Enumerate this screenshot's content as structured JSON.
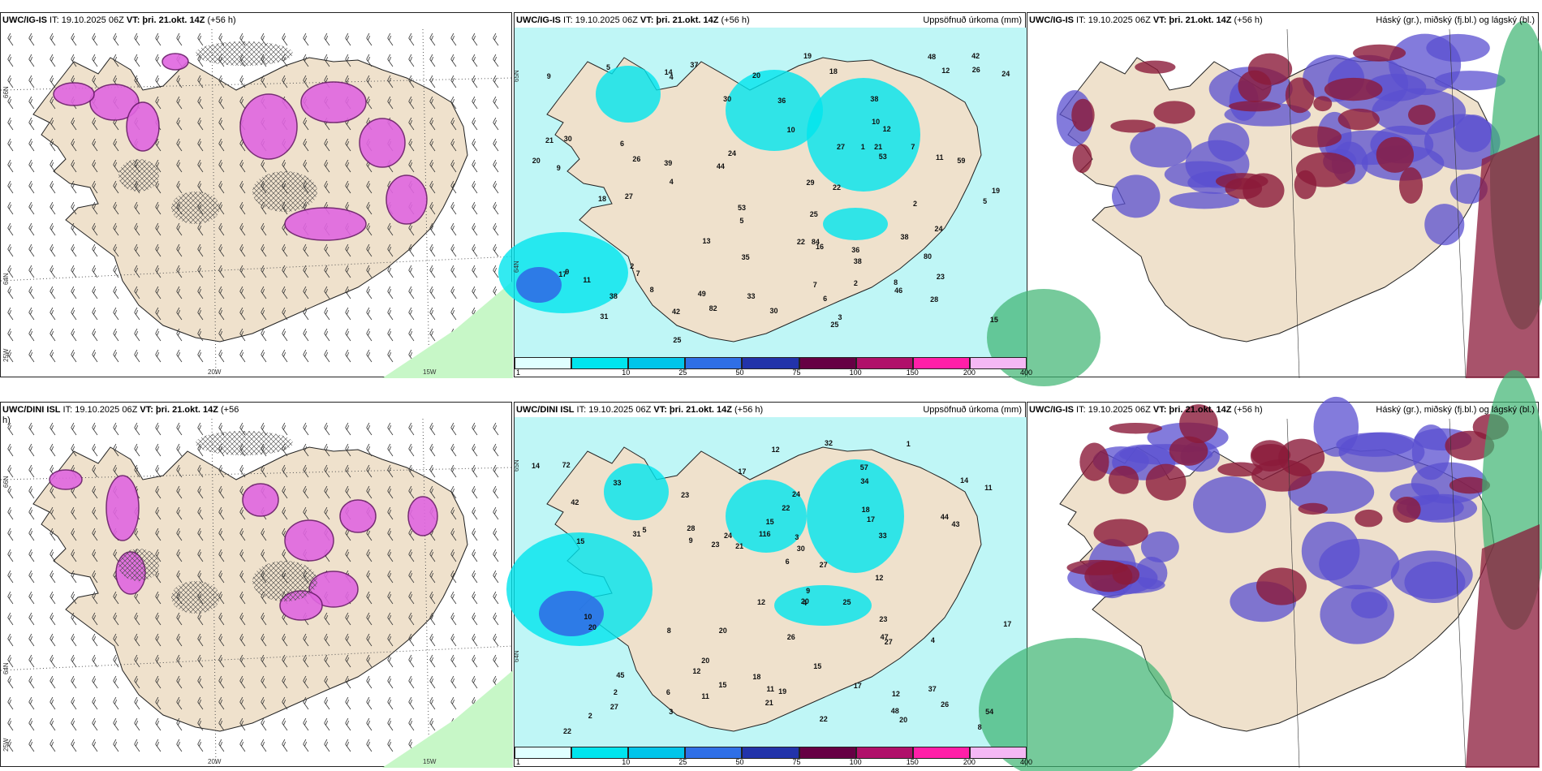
{
  "panels": [
    {
      "id": "p1",
      "model": "UWC/IG-IS",
      "run": "IT: 19.10.2025 06Z",
      "vt_key": "VT:",
      "vt_val": "þri. 21.okt. 14Z",
      "lead": "(+56 h)",
      "right_title": "",
      "lat_labels": [
        "66N",
        "64N"
      ],
      "lon_labels": [
        "25W",
        "20W",
        "15W"
      ],
      "kind": "wind"
    },
    {
      "id": "p2",
      "model": "UWC/IG-IS",
      "run": "IT: 19.10.2025 06Z",
      "vt_key": "VT:",
      "vt_val": "þri. 21.okt. 14Z",
      "lead": "(+56 h)",
      "right_title": "Uppsöfnuð úrkoma (mm)",
      "lat_labels": [
        "65N",
        "64N"
      ],
      "kind": "precip",
      "values": [
        "3",
        "4",
        "7",
        "6",
        "7",
        "6",
        "5",
        "4",
        "5",
        "8",
        "11",
        "21",
        "53",
        "84",
        "53",
        "48",
        "9",
        "12",
        "38",
        "11",
        "8",
        "16",
        "42",
        "46",
        "22",
        "12",
        "27",
        "26",
        "30",
        "30",
        "38",
        "42",
        "38",
        "49",
        "37",
        "33",
        "19",
        "30",
        "19",
        "36",
        "20",
        "29",
        "24",
        "23",
        "18",
        "24",
        "22",
        "35",
        "25",
        "26",
        "13",
        "10",
        "39",
        "10",
        "9",
        "15",
        "28",
        "24",
        "25",
        "17",
        "20",
        "25",
        "21",
        "18",
        "14",
        "31",
        "5",
        "7",
        "2",
        "44",
        "59",
        "27",
        "38",
        "36",
        "82",
        "80",
        "2",
        "2",
        "1",
        "9"
      ],
      "colorbar": [
        "1",
        "10",
        "25",
        "50",
        "75",
        "100",
        "150",
        "200",
        "400"
      ]
    },
    {
      "id": "p3",
      "model": "UWC/IG-IS",
      "run": "IT: 19.10.2025 06Z",
      "vt_key": "VT:",
      "vt_val": "þri. 21.okt. 14Z",
      "lead": "(+56 h)",
      "right_title": "Háský (gr.), miðský (fj.bl.) og lágský (bl.)",
      "kind": "cloud"
    },
    {
      "id": "p4",
      "model": "UWC/DINI ISL",
      "run": "IT: 19.10.2025 06Z",
      "vt_key": "VT:",
      "vt_val": "þri. 21.okt. 14Z",
      "lead": "(+56 h)",
      "right_title": "",
      "lat_labels": [
        "66N",
        "64N"
      ],
      "lon_labels": [
        "25W",
        "20W",
        "15W"
      ],
      "kind": "wind"
    },
    {
      "id": "p5",
      "model": "UWC/DINI ISL",
      "run": "IT: 19.10.2025 06Z",
      "vt_key": "VT:",
      "vt_val": "þri. 21.okt. 14Z",
      "lead": "(+56 h)",
      "right_title": "Uppsöfnuð úrkoma (mm)",
      "lat_labels": [
        "65N",
        "64N"
      ],
      "kind": "precip",
      "values": [
        "2",
        "4",
        "9",
        "26",
        "17",
        "32",
        "37",
        "57",
        "12",
        "12",
        "8",
        "9",
        "15",
        "12",
        "17",
        "28",
        "47",
        "20",
        "12",
        "11",
        "14",
        "27",
        "21",
        "25",
        "27",
        "34",
        "24",
        "22",
        "43",
        "15",
        "26",
        "20",
        "24",
        "22",
        "20",
        "22",
        "11",
        "33",
        "15",
        "18",
        "31",
        "20",
        "23",
        "11",
        "12",
        "23",
        "15",
        "19",
        "17",
        "54",
        "42",
        "116",
        "72",
        "48",
        "45",
        "33",
        "44",
        "21",
        "27",
        "23",
        "30",
        "18",
        "17",
        "14",
        "20",
        "10",
        "1",
        "2",
        "3",
        "3",
        "5",
        "4",
        "6",
        "8",
        "6"
      ],
      "colorbar": [
        "1",
        "10",
        "25",
        "50",
        "75",
        "100",
        "150",
        "200",
        "400"
      ]
    },
    {
      "id": "p6",
      "model": "UWC/IG-IS",
      "run": "IT: 19.10.2025 06Z",
      "vt_key": "VT:",
      "vt_val": "þri. 21.okt. 14Z",
      "lead": "(+56 h)",
      "right_title": "Háský (gr.), miðský (fj.bl.) og lágský (bl.)",
      "kind": "cloud"
    }
  ],
  "colors": {
    "land": "#efe1cc",
    "sea_precip": "#bff6f6",
    "snow": "#e066e0",
    "high_cloud": "#3cb371",
    "mid_cloud": "#5a4fd0",
    "low_cloud": "#8b1a3a",
    "colorbar": [
      "#e0ffff",
      "#00e5ee",
      "#00c5ea",
      "#2f6fe6",
      "#2233aa",
      "#660044",
      "#b0106a",
      "#ff1fa8",
      "#f5b8f5"
    ]
  }
}
